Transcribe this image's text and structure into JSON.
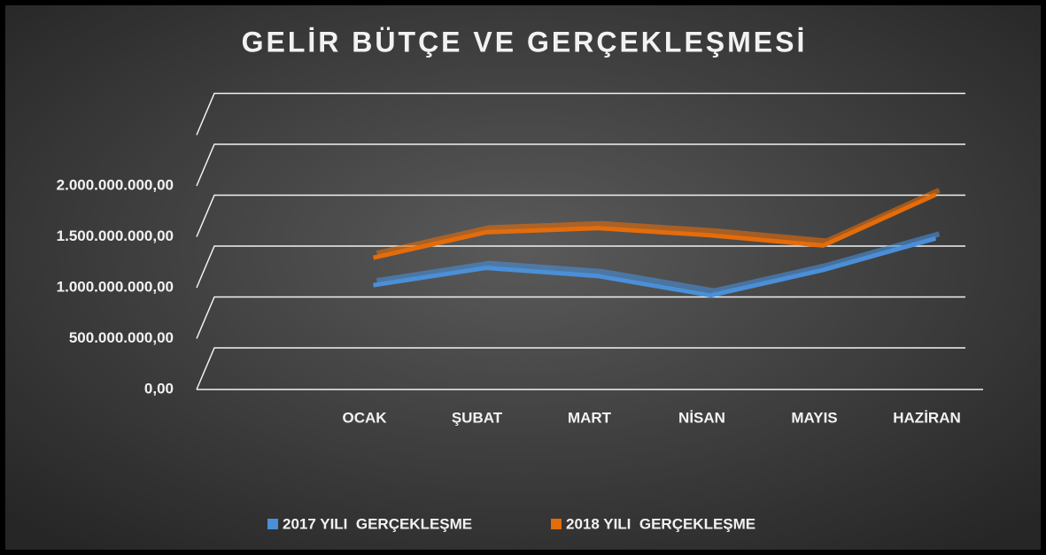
{
  "chart_data": {
    "type": "line",
    "title": "GELİR BÜTÇE VE GERÇEKLEŞMESİ",
    "categories": [
      "OCAK",
      "ŞUBAT",
      "MART",
      "NİSAN",
      "MAYIS",
      "HAZİRAN"
    ],
    "series": [
      {
        "name": "2017 YILI  GERÇEKLEŞME",
        "color": "#4a8fd8",
        "values": [
          820000000,
          990000000,
          910000000,
          720000000,
          970000000,
          1280000000
        ]
      },
      {
        "name": "2018 YILI  GERÇEKLEŞME",
        "color": "#e46c0a",
        "values": [
          1090000000,
          1340000000,
          1380000000,
          1310000000,
          1210000000,
          1710000000
        ]
      }
    ],
    "ylim": [
      0,
      2500000000
    ],
    "yticks": [
      {
        "value": 0,
        "label": "0,00"
      },
      {
        "value": 500000000,
        "label": "500.000.000,00"
      },
      {
        "value": 1000000000,
        "label": "1.000.000.000,00"
      },
      {
        "value": 1500000000,
        "label": "1.500.000.000,00"
      },
      {
        "value": 2000000000,
        "label": "2.000.000.000,00"
      }
    ],
    "grid": true,
    "legend": "bottom"
  }
}
